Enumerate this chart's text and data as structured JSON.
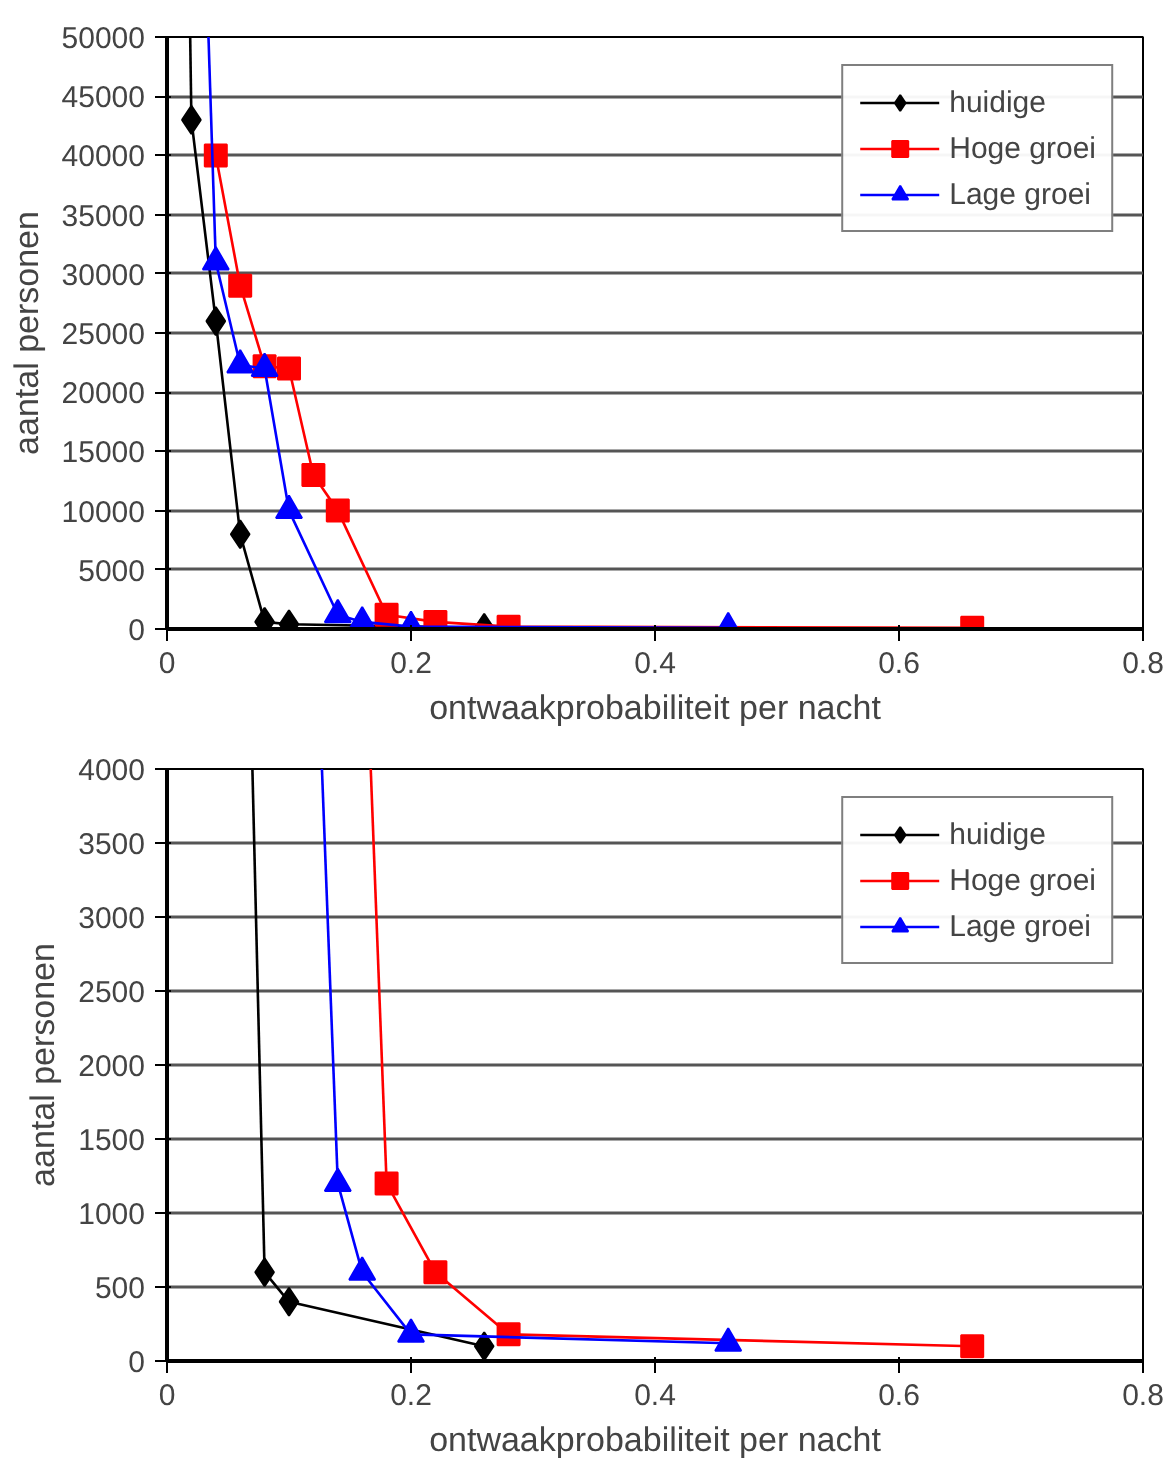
{
  "chart_data": [
    {
      "type": "line",
      "xlabel": "ontwaakprobabiliteit per nacht",
      "ylabel": "aantal personen",
      "xlim": [
        0,
        0.8
      ],
      "xticks": [
        0,
        0.2,
        0.4,
        0.6,
        0.8
      ],
      "ylim": [
        0,
        50000
      ],
      "yticks": [
        0,
        5000,
        10000,
        15000,
        20000,
        25000,
        30000,
        35000,
        40000,
        45000,
        50000
      ],
      "grid": "y",
      "legend": "top right",
      "series": [
        {
          "name": "huidige",
          "color": "#000000",
          "marker": "diamond",
          "x": [
            0.02,
            0.04,
            0.06,
            0.08,
            0.1,
            0.26
          ],
          "values": [
            43000,
            26000,
            8000,
            600,
            400,
            100
          ]
        },
        {
          "name": "Hoge groei",
          "color": "#ff0000",
          "marker": "square",
          "x": [
            0.04,
            0.06,
            0.08,
            0.1,
            0.12,
            0.14,
            0.18,
            0.22,
            0.28,
            0.66
          ],
          "values": [
            40000,
            29000,
            22200,
            22000,
            13000,
            10000,
            1200,
            600,
            200,
            100
          ]
        },
        {
          "name": "Lage groei",
          "color": "#0000ff",
          "marker": "triangle",
          "x": [
            0.04,
            0.06,
            0.08,
            0.1,
            0.14,
            0.16,
            0.2,
            0.46
          ],
          "values": [
            31000,
            22300,
            22000,
            10000,
            1200,
            600,
            200,
            100
          ]
        },
        {
          "color": "#000000",
          "marker": "none",
          "x": [
            0.019,
            0.02
          ],
          "values": [
            50000,
            43000
          ]
        },
        {
          "color": "#0000ff",
          "marker": "none",
          "x": [
            0.034,
            0.04
          ],
          "values": [
            50000,
            31000
          ]
        }
      ]
    },
    {
      "type": "line",
      "xlabel": "ontwaakprobabiliteit per nacht",
      "ylabel": "aantal personen",
      "xlim": [
        0,
        0.8
      ],
      "xticks": [
        0,
        0.2,
        0.4,
        0.6,
        0.8
      ],
      "ylim": [
        0,
        4000
      ],
      "yticks": [
        0,
        500,
        1000,
        1500,
        2000,
        2500,
        3000,
        3500,
        4000
      ],
      "grid": "y",
      "legend": "top right",
      "series": [
        {
          "name": "huidige",
          "color": "#000000",
          "marker": "diamond",
          "x": [
            0.08,
            0.1,
            0.26
          ],
          "values": [
            600,
            400,
            100
          ]
        },
        {
          "name": "Hoge groei",
          "color": "#ff0000",
          "marker": "square",
          "x": [
            0.18,
            0.22,
            0.28,
            0.66
          ],
          "values": [
            1200,
            600,
            180,
            100
          ]
        },
        {
          "name": "Lage groei",
          "color": "#0000ff",
          "marker": "triangle",
          "x": [
            0.14,
            0.16,
            0.2,
            0.46
          ],
          "values": [
            1200,
            600,
            180,
            120
          ]
        },
        {
          "color": "#000000",
          "marker": "none",
          "x": [
            0.07,
            0.08
          ],
          "values": [
            4000,
            600
          ]
        },
        {
          "color": "#ff0000",
          "marker": "none",
          "x": [
            0.167,
            0.18
          ],
          "values": [
            4000,
            1200
          ]
        },
        {
          "color": "#0000ff",
          "marker": "none",
          "x": [
            0.127,
            0.14
          ],
          "values": [
            4000,
            1200
          ]
        }
      ]
    }
  ]
}
